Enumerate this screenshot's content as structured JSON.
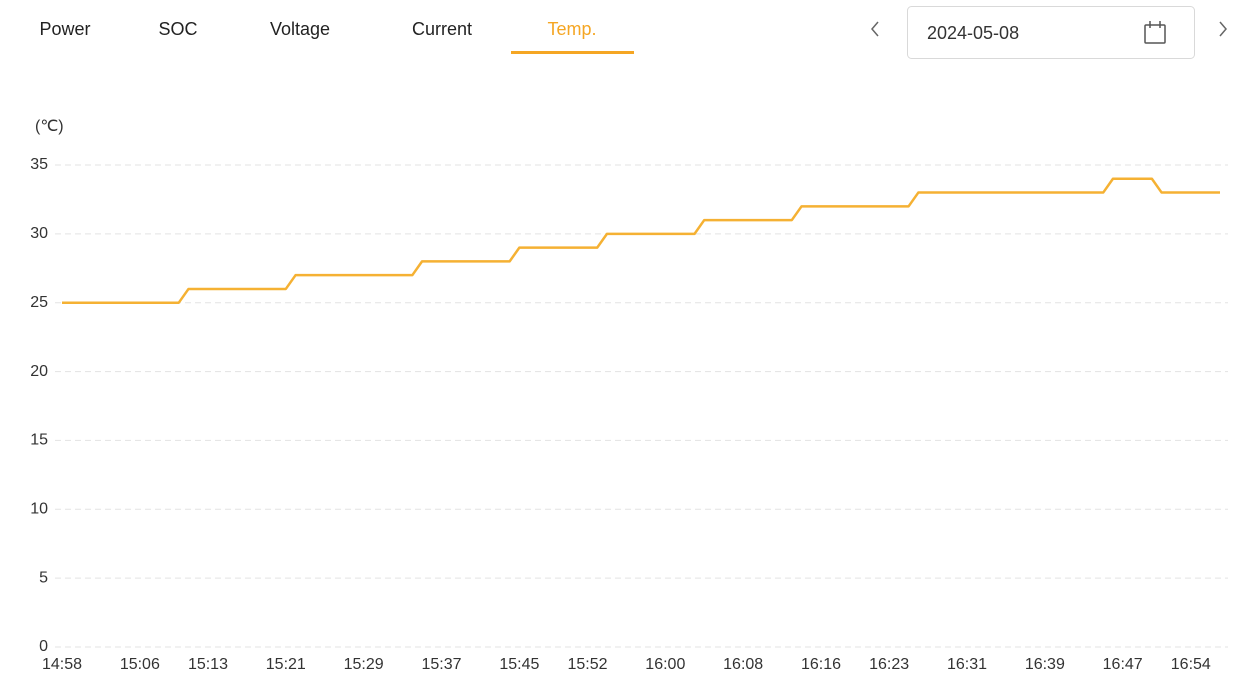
{
  "tabs": [
    "Power",
    "SOC",
    "Voltage",
    "Current",
    "Temp."
  ],
  "active_tab": 4,
  "date": "2024-05-08",
  "chart_data": {
    "type": "line",
    "y_axis_label": "(℃)",
    "color": "#f5b133",
    "x": [
      898,
      910,
      911,
      921,
      922,
      934,
      935,
      944,
      945,
      953,
      954,
      963,
      964,
      973,
      974,
      985,
      986,
      1005,
      1006,
      1010,
      1011,
      1017
    ],
    "values": [
      25,
      25,
      26,
      26,
      27,
      27,
      28,
      28,
      29,
      29,
      30,
      30,
      31,
      31,
      32,
      32,
      33,
      33,
      34,
      34,
      33,
      33
    ],
    "xlim": [
      898,
      1017
    ],
    "xticks": [
      {
        "value": 898,
        "label": "14:58"
      },
      {
        "value": 906,
        "label": "15:06"
      },
      {
        "value": 913,
        "label": "15:13"
      },
      {
        "value": 921,
        "label": "15:21"
      },
      {
        "value": 929,
        "label": "15:29"
      },
      {
        "value": 937,
        "label": "15:37"
      },
      {
        "value": 945,
        "label": "15:45"
      },
      {
        "value": 952,
        "label": "15:52"
      },
      {
        "value": 960,
        "label": "16:00"
      },
      {
        "value": 968,
        "label": "16:08"
      },
      {
        "value": 976,
        "label": "16:16"
      },
      {
        "value": 983,
        "label": "16:23"
      },
      {
        "value": 991,
        "label": "16:31"
      },
      {
        "value": 999,
        "label": "16:39"
      },
      {
        "value": 1007,
        "label": "16:47"
      },
      {
        "value": 1014,
        "label": "16:54"
      }
    ],
    "ylim": [
      0,
      35
    ],
    "yticks": [
      0,
      5,
      10,
      15,
      20,
      25,
      30,
      35
    ],
    "grid": true
  }
}
